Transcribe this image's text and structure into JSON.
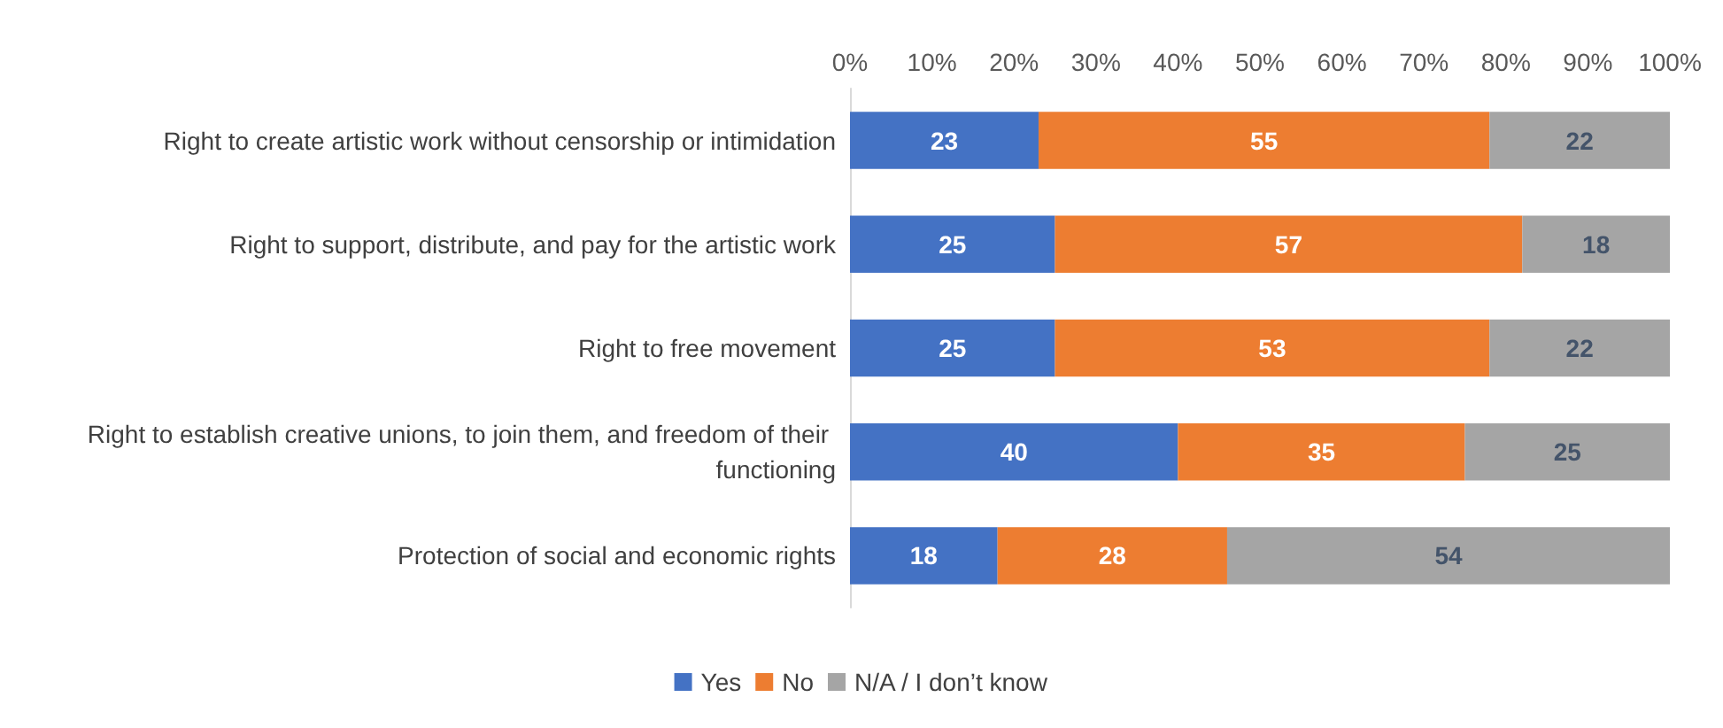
{
  "chart_data": {
    "type": "bar",
    "orientation": "horizontal",
    "stacked": true,
    "data_labels": true,
    "legend": "bottom",
    "grid": false,
    "categories": [
      "Right to create artistic work without censorship or intimidation",
      "Right to support, distribute, and pay for the artistic work",
      "Right to free movement",
      "Right to establish creative unions, to join them, and freedom of their functioning",
      "Protection of social and economic rights"
    ],
    "series": [
      {
        "name": "Yes",
        "color": "#4472c4",
        "values": [
          23,
          25,
          25,
          40,
          18
        ]
      },
      {
        "name": "No",
        "color": "#ed7d31",
        "values": [
          55,
          57,
          53,
          35,
          28
        ]
      },
      {
        "name": "N/A / I don’t know",
        "color": "#a5a5a5",
        "values": [
          22,
          18,
          22,
          25,
          54
        ]
      }
    ],
    "xlim": [
      0,
      100
    ],
    "xticks": [
      {
        "value": 0,
        "label": "0%"
      },
      {
        "value": 10,
        "label": "10%"
      },
      {
        "value": 20,
        "label": "20%"
      },
      {
        "value": 30,
        "label": "30%"
      },
      {
        "value": 40,
        "label": "40%"
      },
      {
        "value": 50,
        "label": "50%"
      },
      {
        "value": 60,
        "label": "60%"
      },
      {
        "value": 70,
        "label": "70%"
      },
      {
        "value": 80,
        "label": "80%"
      },
      {
        "value": 90,
        "label": "90%"
      },
      {
        "value": 100,
        "label": "100%"
      }
    ]
  }
}
